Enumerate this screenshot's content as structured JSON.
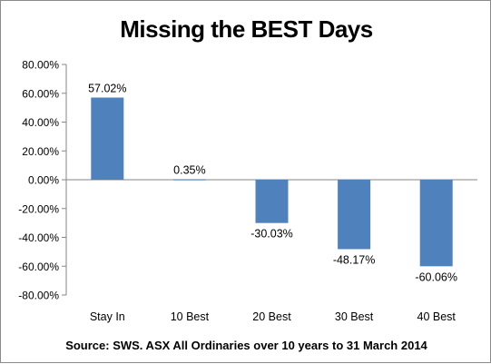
{
  "chart_data": {
    "type": "bar",
    "title": "Missing the BEST Days",
    "categories": [
      "Stay In",
      "10 Best",
      "20 Best",
      "30 Best",
      "40 Best"
    ],
    "values": [
      57.02,
      0.35,
      -30.03,
      -48.17,
      -60.06
    ],
    "data_labels": [
      "57.02%",
      "0.35%",
      "-30.03%",
      "-48.17%",
      "-60.06%"
    ],
    "y_ticks": [
      "80.00%",
      "60.00%",
      "40.00%",
      "20.00%",
      "0.00%",
      "-20.00%",
      "-40.00%",
      "-60.00%",
      "-80.00%"
    ],
    "ylim": [
      -80,
      80
    ],
    "grid": false,
    "legend": "none",
    "bar_color": "#4f81bd",
    "source": "Source: SWS. ASX All Ordinaries over 10 years to 31 March 2014"
  }
}
